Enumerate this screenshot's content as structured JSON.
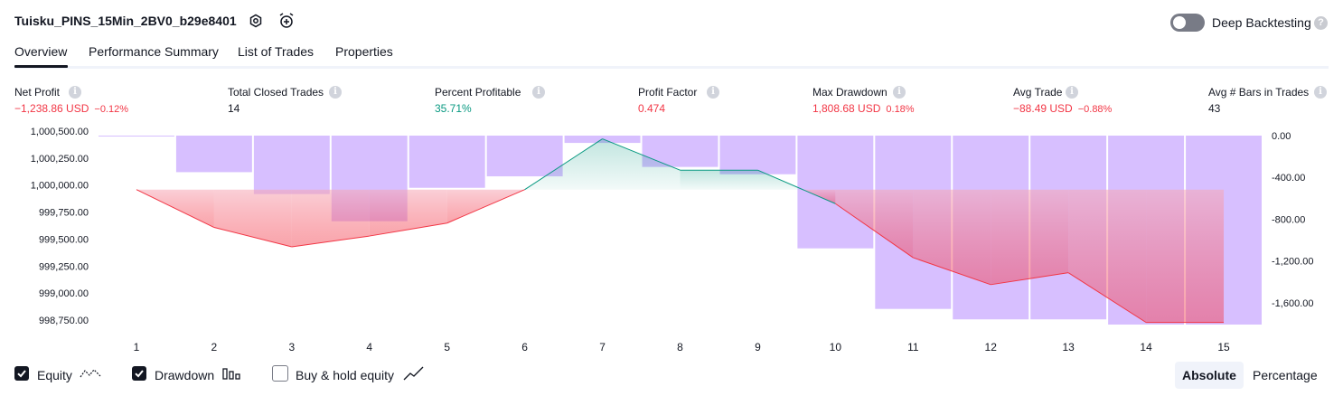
{
  "header": {
    "title": "Tuisku_PINS_15Min_2BV0_b29e8401",
    "deep_backtesting_label": "Deep Backtesting",
    "deep_backtesting_enabled": false
  },
  "tabs": [
    {
      "label": "Overview",
      "active": true
    },
    {
      "label": "Performance Summary",
      "active": false
    },
    {
      "label": "List of Trades",
      "active": false
    },
    {
      "label": "Properties",
      "active": false
    }
  ],
  "metrics": [
    {
      "label": "Net Profit",
      "value": "−1,238.86 USD",
      "sub": "−0.12%",
      "tone": "red"
    },
    {
      "label": "Total Closed Trades",
      "value": "14",
      "sub": "",
      "tone": "dark"
    },
    {
      "label": "Percent Profitable",
      "value": "35.71%",
      "sub": "",
      "tone": "green"
    },
    {
      "label": "Profit Factor",
      "value": "0.474",
      "sub": "",
      "tone": "red"
    },
    {
      "label": "Max Drawdown",
      "value": "1,808.68 USD",
      "sub": "0.18%",
      "tone": "red"
    },
    {
      "label": "Avg Trade",
      "value": "−88.49 USD",
      "sub": "−0.88%",
      "tone": "red"
    },
    {
      "label": "Avg # Bars in Trades",
      "value": "43",
      "sub": "",
      "tone": "dark"
    }
  ],
  "chart_data": {
    "type": "line",
    "x": [
      "1",
      "2",
      "3",
      "4",
      "5",
      "6",
      "7",
      "8",
      "9",
      "10",
      "11",
      "12",
      "13",
      "14",
      "15"
    ],
    "equity_baseline": 1000000,
    "series": [
      {
        "name": "Equity",
        "axis": "left",
        "values": [
          1000000,
          999650,
          999470,
          999570,
          999690,
          1000000,
          1000470,
          1000180,
          1000180,
          999870,
          999370,
          999120,
          999230,
          998770,
          998770
        ]
      },
      {
        "name": "Drawdown",
        "axis": "right",
        "values": [
          0,
          -350,
          -560,
          -820,
          -500,
          -390,
          -70,
          -300,
          -370,
          -1080,
          -1660,
          -1760,
          -1760,
          -1810,
          -1810
        ]
      }
    ],
    "y_left_ticks": [
      "1,000,500.00",
      "1,000,250.00",
      "1,000,000.00",
      "999,750.00",
      "999,500.00",
      "999,250.00",
      "999,000.00",
      "998,750.00"
    ],
    "y_right_ticks": [
      "0.00",
      "-400.00",
      "-800.00",
      "-1,200.00",
      "-1,600.00"
    ],
    "y_left_range": [
      998750,
      1000500
    ],
    "y_right_range": [
      -1810,
      0
    ],
    "colors": {
      "equity_up": "#089981",
      "equity_down": "#f23645",
      "drawdown_bar": "#c9a9ff"
    }
  },
  "legend": {
    "equity": {
      "label": "Equity",
      "checked": true
    },
    "drawdown": {
      "label": "Drawdown",
      "checked": true
    },
    "buy_hold": {
      "label": "Buy & hold equity",
      "checked": false
    }
  },
  "view_toggle": {
    "absolute": "Absolute",
    "percentage": "Percentage",
    "selected": "Absolute"
  }
}
